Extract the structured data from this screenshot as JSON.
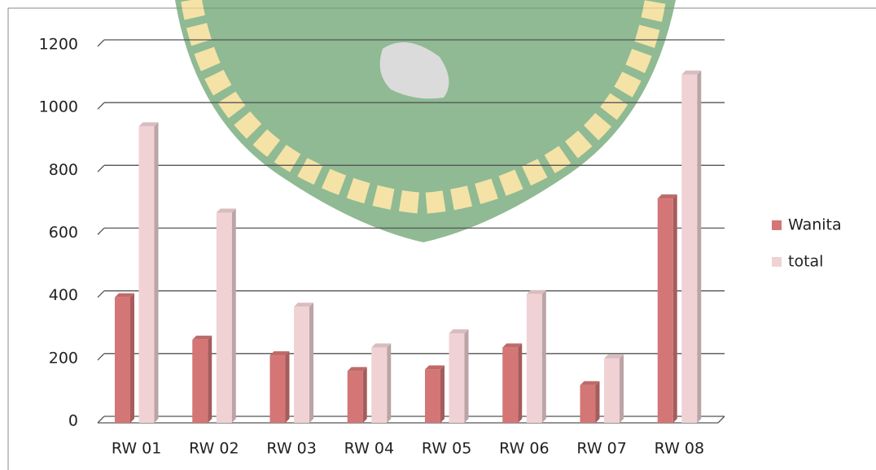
{
  "chart_data": {
    "type": "bar",
    "categories": [
      "RW 01",
      "RW 02",
      "RW 03",
      "RW 04",
      "RW 05",
      "RW 06",
      "RW 07",
      "RW 08"
    ],
    "series": [
      {
        "name": "Wanita",
        "color": "#d47676",
        "values": [
          400,
          265,
          215,
          165,
          170,
          240,
          120,
          715
        ]
      },
      {
        "name": "total",
        "color": "#f0d2d5",
        "values": [
          945,
          670,
          370,
          240,
          285,
          410,
          205,
          1110
        ]
      }
    ],
    "ylim": [
      0,
      1200
    ],
    "yticks": [
      0,
      200,
      400,
      600,
      800,
      1000,
      1200
    ],
    "grid": true,
    "legend": "right"
  }
}
